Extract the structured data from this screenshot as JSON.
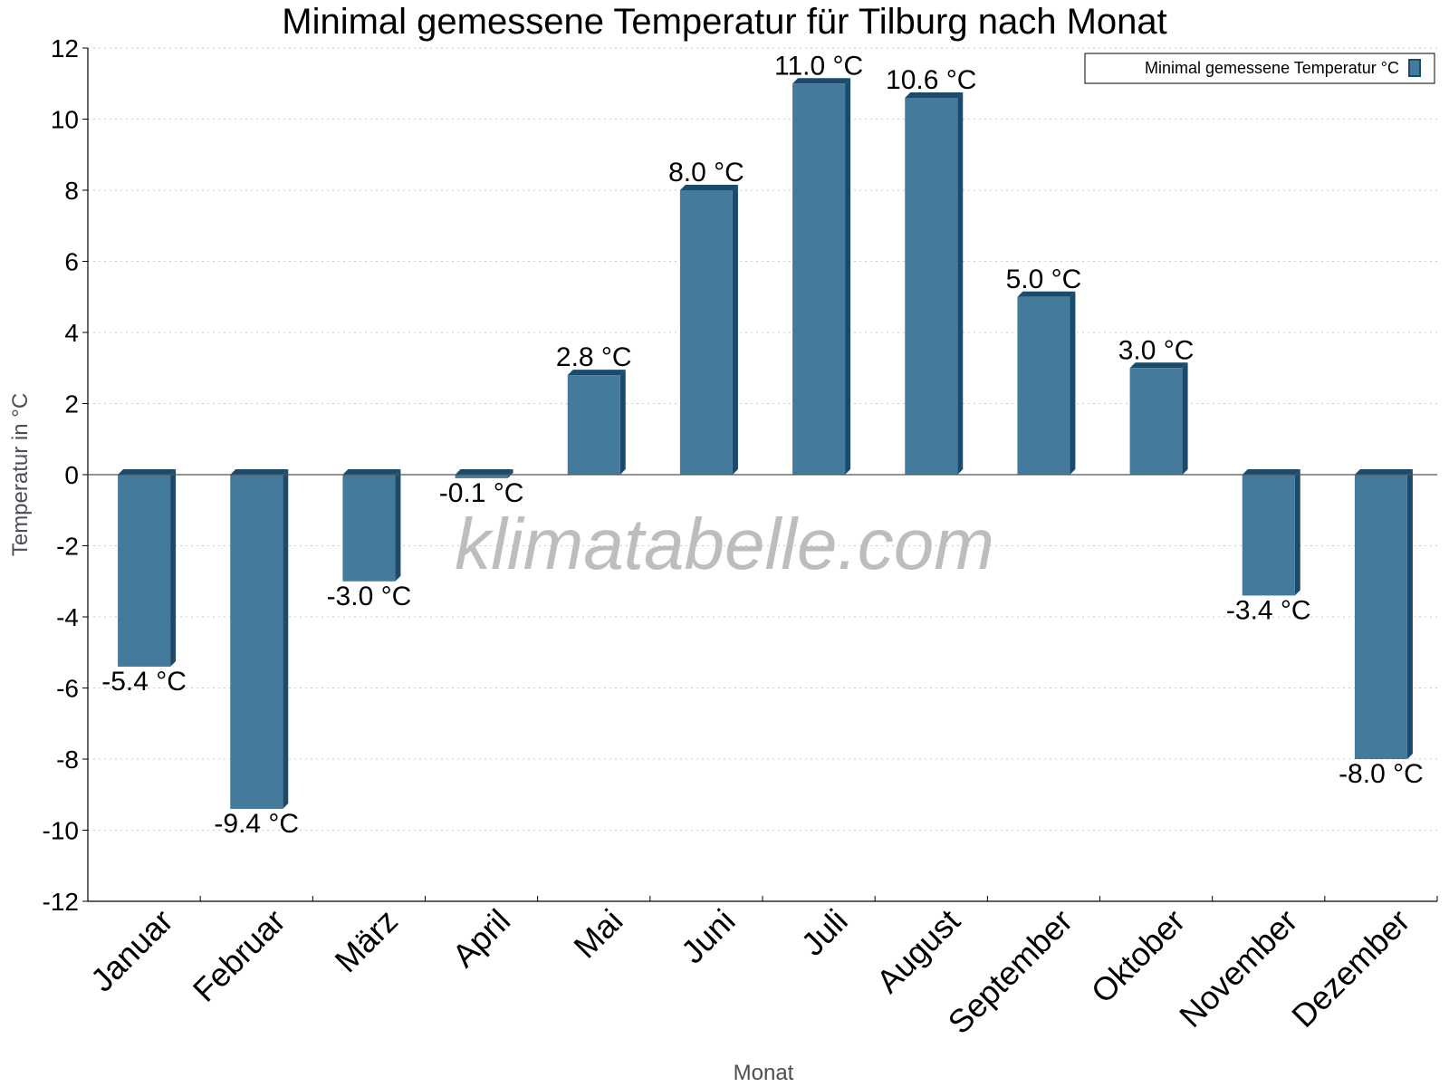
{
  "chart_data": {
    "type": "bar",
    "title": "Minimal gemessene Temperatur für Tilburg nach Monat",
    "xlabel": "Monat",
    "ylabel": "Temperatur in °C",
    "ylim": [
      -12,
      12
    ],
    "yticks": [
      12,
      10,
      8,
      6,
      4,
      2,
      0,
      -2,
      -4,
      -6,
      -8,
      -10,
      -12
    ],
    "grid": true,
    "legend_position": "top-right",
    "categories": [
      "Januar",
      "Februar",
      "März",
      "April",
      "Mai",
      "Juni",
      "Juli",
      "August",
      "September",
      "Oktober",
      "November",
      "Dezember"
    ],
    "series": [
      {
        "name": "Minimal gemessene Temperatur °C",
        "values": [
          -5.4,
          -9.4,
          -3.0,
          -0.1,
          2.8,
          8.0,
          11.0,
          10.6,
          5.0,
          3.0,
          -3.4,
          -8.0
        ],
        "labels": [
          "-5.4 °C",
          "-9.4 °C",
          "-3.0 °C",
          "-0.1 °C",
          "2.8 °C",
          "8.0 °C",
          "11.0 °C",
          "10.6 °C",
          "5.0 °C",
          "3.0 °C",
          "-3.4 °C",
          "-8.0 °C"
        ],
        "color": "#447a9c",
        "color_dark": "#1b4a6b"
      }
    ],
    "watermark": "klimatabelle.com"
  }
}
